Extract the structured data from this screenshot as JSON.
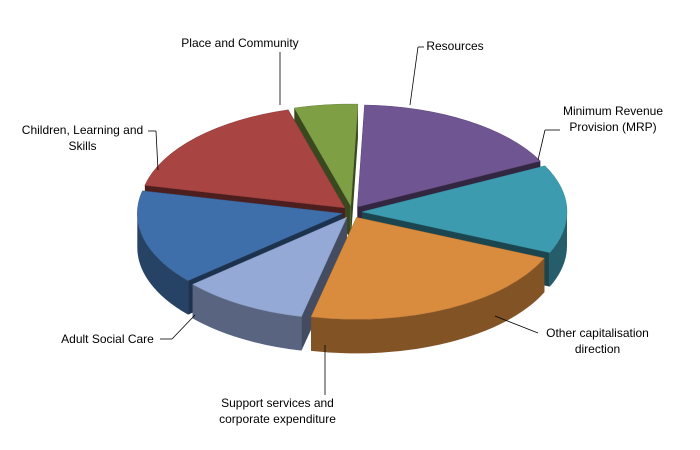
{
  "chart_data": {
    "type": "pie",
    "categories": [
      "Resources",
      "Minimum Revenue Provision (MRP)",
      "Other capitalisation direction",
      "Support services and corporate expenditure",
      "Adult Social Care",
      "Children, Learning and Skills",
      "Place and Community"
    ],
    "values": [
      17,
      14,
      22,
      10,
      15,
      17,
      5
    ],
    "colors": [
      "#6f5591",
      "#3d9bb0",
      "#d98b3e",
      "#95a9d6",
      "#3f6faa",
      "#a84442",
      "#7f9f45"
    ]
  }
}
